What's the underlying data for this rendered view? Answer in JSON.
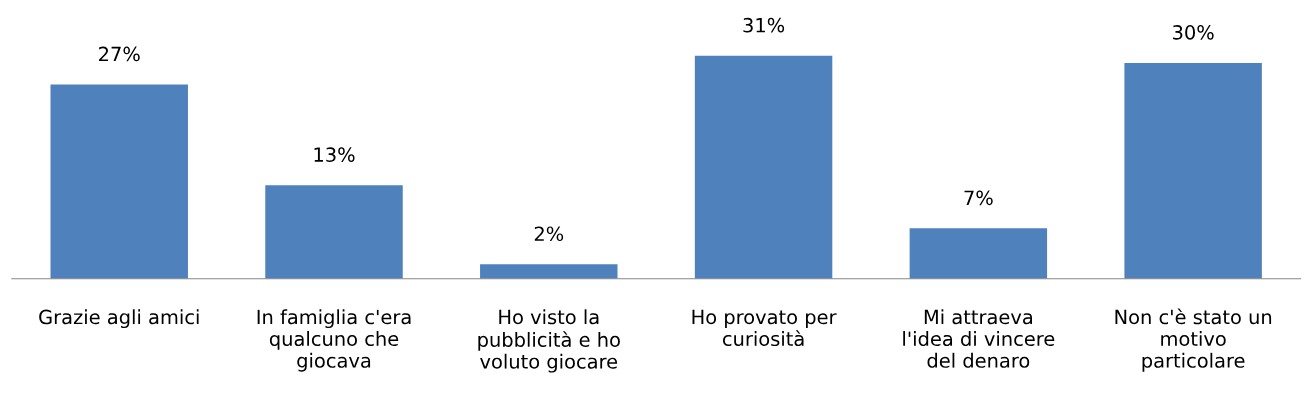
{
  "chart_data": {
    "type": "bar",
    "categories": [
      "Grazie agli amici",
      "In famiglia c'era\nqualcuno che\ngiocava",
      "Ho visto la\npubblicità e ho\nvoluto giocare",
      "Ho provato per\ncuriosità",
      "Mi attraeva\nl'idea di vincere\ndel denaro",
      "Non c'è stato un\nmotivo\nparticolare"
    ],
    "values": [
      27,
      13,
      2,
      31,
      7,
      30
    ],
    "value_labels": [
      "27%",
      "13%",
      "2%",
      "31%",
      "7%",
      "30%"
    ],
    "color": "#4f81bd",
    "grid": false,
    "legend": false
  }
}
